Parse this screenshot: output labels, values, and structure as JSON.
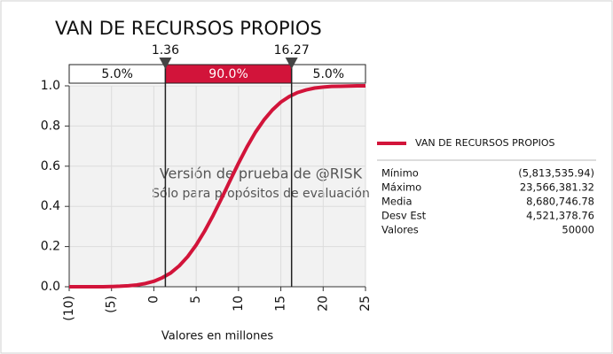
{
  "chart_data": {
    "type": "line",
    "title": "VAN DE RECURSOS PROPIOS",
    "x_label": "Valores en millones",
    "watermark": [
      "Versión de prueba de @RISK",
      "Sólo para propósitos de evaluación"
    ],
    "x": [
      -10,
      -9,
      -8,
      -7,
      -6,
      -5,
      -4,
      -3,
      -2,
      -1,
      0,
      1,
      2,
      3,
      4,
      5,
      6,
      7,
      8,
      9,
      10,
      11,
      12,
      13,
      14,
      15,
      16,
      17,
      18,
      19,
      20,
      21,
      22,
      23,
      24,
      25
    ],
    "series": [
      {
        "name": "VAN DE RECURSOS PROPIOS",
        "color": "#d2143a",
        "values": [
          0,
          0,
          0,
          0,
          0,
          0.001,
          0.0025,
          0.005,
          0.009,
          0.016,
          0.027,
          0.045,
          0.069,
          0.104,
          0.15,
          0.208,
          0.277,
          0.355,
          0.44,
          0.528,
          0.615,
          0.696,
          0.769,
          0.83,
          0.88,
          0.919,
          0.947,
          0.967,
          0.98,
          0.989,
          0.994,
          0.997,
          0.998,
          0.999,
          1,
          1
        ]
      }
    ],
    "xlim": [
      -10,
      25
    ],
    "xticks": [
      {
        "value": -10,
        "label": "(10)"
      },
      {
        "value": -5,
        "label": "(5)"
      },
      0,
      5,
      10,
      15,
      20,
      25
    ],
    "ylim": [
      0,
      1
    ],
    "yticks": [
      {
        "value": 0,
        "label": "0.0"
      },
      0.2,
      0.4,
      0.6,
      0.8,
      {
        "value": 1,
        "label": "1.0"
      }
    ],
    "grid": true,
    "delimiters": [
      1.36,
      16.27
    ],
    "band_percentages": [
      5,
      90,
      5
    ],
    "band_labels": [
      "5.0%",
      "90.0%",
      "5.0%"
    ],
    "statistics": {
      "labels": [
        "Mínimo",
        "Máximo",
        "Media",
        "Desv Est",
        "Valores"
      ],
      "values": [
        "(5,813,535.94)",
        "23,566,381.32",
        "8,680,746.78",
        "4,521,378.76",
        "50000"
      ]
    }
  }
}
